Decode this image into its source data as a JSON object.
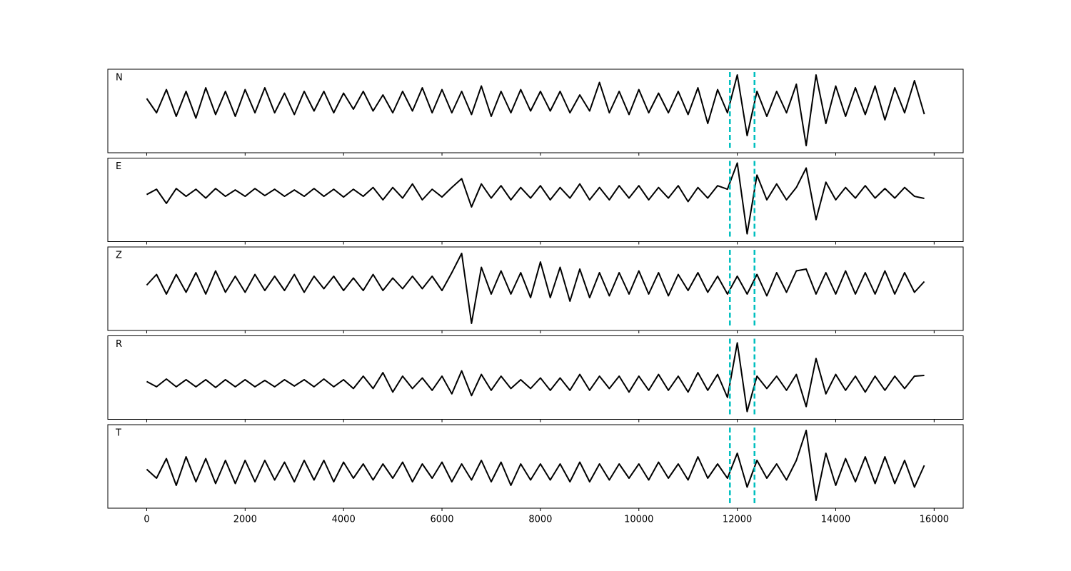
{
  "chart_data": [
    {
      "type": "line",
      "label": "N",
      "x": [
        0,
        200,
        400,
        600,
        800,
        1000,
        1200,
        1400,
        1600,
        1800,
        2000,
        2200,
        2400,
        2600,
        2800,
        3000,
        3200,
        3400,
        3600,
        3800,
        4000,
        4200,
        4400,
        4600,
        4800,
        5000,
        5200,
        5400,
        5600,
        5800,
        6000,
        6200,
        6400,
        6600,
        6800,
        7000,
        7200,
        7400,
        7600,
        7800,
        8000,
        8200,
        8400,
        8600,
        8800,
        9000,
        9200,
        9400,
        9600,
        9800,
        10000,
        10200,
        10400,
        10600,
        10800,
        11000,
        11200,
        11400,
        11600,
        11800,
        12000,
        12200,
        12400,
        12600,
        12800,
        13000,
        13200,
        13400,
        13600,
        13800,
        14000,
        14200,
        14400,
        14600,
        14800,
        15000,
        15200,
        15400,
        15600,
        15800
      ],
      "series": [
        {
          "color": "#000000",
          "values": [
            0.1,
            -0.3,
            0.35,
            -0.4,
            0.3,
            -0.45,
            0.4,
            -0.35,
            0.3,
            -0.4,
            0.35,
            -0.3,
            0.4,
            -0.3,
            0.25,
            -0.35,
            0.3,
            -0.25,
            0.3,
            -0.3,
            0.25,
            -0.2,
            0.3,
            -0.25,
            0.2,
            -0.3,
            0.3,
            -0.25,
            0.4,
            -0.3,
            0.35,
            -0.3,
            0.3,
            -0.35,
            0.45,
            -0.4,
            0.3,
            -0.3,
            0.35,
            -0.25,
            0.3,
            -0.25,
            0.3,
            -0.3,
            0.2,
            -0.25,
            0.55,
            -0.3,
            0.3,
            -0.35,
            0.35,
            -0.3,
            0.25,
            -0.3,
            0.3,
            -0.35,
            0.4,
            -0.6,
            0.35,
            -0.3,
            0.76,
            -0.94,
            0.3,
            -0.4,
            0.3,
            -0.3,
            0.5,
            -1.22,
            0.76,
            -0.6,
            0.45,
            -0.4,
            0.4,
            -0.35,
            0.45,
            -0.5,
            0.4,
            -0.3,
            0.6,
            -0.34
          ]
        }
      ],
      "xlim": [
        -790,
        16590
      ],
      "ylim": [
        -1.42,
        0.92
      ],
      "vlines": [
        11850,
        12350
      ],
      "vline_color": "#00bfbf"
    },
    {
      "type": "line",
      "label": "E",
      "x": [
        0,
        200,
        400,
        600,
        800,
        1000,
        1200,
        1400,
        1600,
        1800,
        2000,
        2200,
        2400,
        2600,
        2800,
        3000,
        3200,
        3400,
        3600,
        3800,
        4000,
        4200,
        4400,
        4600,
        4800,
        5000,
        5200,
        5400,
        5600,
        5800,
        6000,
        6200,
        6400,
        6600,
        6800,
        7000,
        7200,
        7400,
        7600,
        7800,
        8000,
        8200,
        8400,
        8600,
        8800,
        9000,
        9200,
        9400,
        9600,
        9800,
        10000,
        10200,
        10400,
        10600,
        10800,
        11000,
        11200,
        11400,
        11600,
        11800,
        12000,
        12200,
        12400,
        12600,
        12800,
        13000,
        13200,
        13400,
        13600,
        13800,
        14000,
        14200,
        14400,
        14600,
        14800,
        15000,
        15200,
        15400,
        15600,
        15800
      ],
      "series": [
        {
          "color": "#000000",
          "values": [
            -0.05,
            0.1,
            -0.3,
            0.12,
            -0.1,
            0.1,
            -0.15,
            0.12,
            -0.1,
            0.08,
            -0.1,
            0.12,
            -0.08,
            0.1,
            -0.1,
            0.08,
            -0.1,
            0.12,
            -0.1,
            0.1,
            -0.12,
            0.1,
            -0.1,
            0.15,
            -0.2,
            0.15,
            -0.15,
            0.25,
            -0.2,
            0.1,
            -0.12,
            0.15,
            0.4,
            -0.4,
            0.25,
            -0.15,
            0.2,
            -0.2,
            0.15,
            -0.15,
            0.2,
            -0.2,
            0.15,
            -0.15,
            0.25,
            -0.2,
            0.15,
            -0.2,
            0.2,
            -0.15,
            0.2,
            -0.2,
            0.15,
            -0.15,
            0.2,
            -0.25,
            0.15,
            -0.15,
            0.2,
            0.1,
            0.84,
            -1.16,
            0.5,
            -0.2,
            0.25,
            -0.2,
            0.15,
            0.7,
            -0.76,
            0.3,
            -0.2,
            0.15,
            -0.15,
            0.2,
            -0.15,
            0.12,
            -0.15,
            0.15,
            -0.1,
            -0.16
          ]
        }
      ],
      "xlim": [
        -790,
        16590
      ],
      "ylim": [
        -1.38,
        0.98
      ],
      "vlines": [
        11850,
        12350
      ],
      "vline_color": "#00bfbf"
    },
    {
      "type": "line",
      "label": "Z",
      "x": [
        0,
        200,
        400,
        600,
        800,
        1000,
        1200,
        1400,
        1600,
        1800,
        2000,
        2200,
        2400,
        2600,
        2800,
        3000,
        3200,
        3400,
        3600,
        3800,
        4000,
        4200,
        4400,
        4600,
        4800,
        5000,
        5200,
        5400,
        5600,
        5800,
        6000,
        6200,
        6400,
        6600,
        6800,
        7000,
        7200,
        7400,
        7600,
        7800,
        8000,
        8200,
        8400,
        8600,
        8800,
        9000,
        9200,
        9400,
        9600,
        9800,
        10000,
        10200,
        10400,
        10600,
        10800,
        11000,
        11200,
        11400,
        11600,
        11800,
        12000,
        12200,
        12400,
        12600,
        12800,
        13000,
        13200,
        13400,
        13600,
        13800,
        14000,
        14200,
        14400,
        14600,
        14800,
        15000,
        15200,
        15400,
        15600,
        15800
      ],
      "series": [
        {
          "color": "#000000",
          "values": [
            -0.05,
            0.25,
            -0.3,
            0.25,
            -0.25,
            0.3,
            -0.3,
            0.35,
            -0.25,
            0.2,
            -0.25,
            0.25,
            -0.2,
            0.2,
            -0.2,
            0.25,
            -0.25,
            0.2,
            -0.15,
            0.2,
            -0.2,
            0.15,
            -0.2,
            0.25,
            -0.2,
            0.15,
            -0.15,
            0.2,
            -0.15,
            0.2,
            -0.2,
            0.3,
            0.84,
            -1.12,
            0.45,
            -0.3,
            0.35,
            -0.3,
            0.3,
            -0.4,
            0.6,
            -0.4,
            0.45,
            -0.5,
            0.4,
            -0.4,
            0.3,
            -0.35,
            0.3,
            -0.3,
            0.35,
            -0.3,
            0.3,
            -0.35,
            0.25,
            -0.2,
            0.3,
            -0.25,
            0.2,
            -0.3,
            0.2,
            -0.3,
            0.25,
            -0.35,
            0.3,
            -0.25,
            0.35,
            0.4,
            -0.3,
            0.3,
            -0.3,
            0.35,
            -0.3,
            0.3,
            -0.3,
            0.35,
            -0.3,
            0.3,
            -0.25,
            0.05
          ]
        }
      ],
      "xlim": [
        -790,
        16590
      ],
      "ylim": [
        -1.32,
        1.02
      ],
      "vlines": [
        11850,
        12350
      ],
      "vline_color": "#00bfbf"
    },
    {
      "type": "line",
      "label": "R",
      "x": [
        0,
        200,
        400,
        600,
        800,
        1000,
        1200,
        1400,
        1600,
        1800,
        2000,
        2200,
        2400,
        2600,
        2800,
        3000,
        3200,
        3400,
        3600,
        3800,
        4000,
        4200,
        4400,
        4600,
        4800,
        5000,
        5200,
        5400,
        5600,
        5800,
        6000,
        6200,
        6400,
        6600,
        6800,
        7000,
        7200,
        7400,
        7600,
        7800,
        8000,
        8200,
        8400,
        8600,
        8800,
        9000,
        9200,
        9400,
        9600,
        9800,
        10000,
        10200,
        10400,
        10600,
        10800,
        11000,
        11200,
        11400,
        11600,
        11800,
        12000,
        12200,
        12400,
        12600,
        12800,
        13000,
        13200,
        13400,
        13600,
        13800,
        14000,
        14200,
        14400,
        14600,
        14800,
        15000,
        15200,
        15400,
        15600,
        15800
      ],
      "series": [
        {
          "color": "#000000",
          "values": [
            0.05,
            -0.1,
            0.12,
            -0.1,
            0.1,
            -0.1,
            0.1,
            -0.12,
            0.1,
            -0.1,
            0.1,
            -0.1,
            0.08,
            -0.1,
            0.1,
            -0.08,
            0.1,
            -0.1,
            0.12,
            -0.1,
            0.1,
            -0.15,
            0.2,
            -0.15,
            0.3,
            -0.25,
            0.2,
            -0.15,
            0.15,
            -0.2,
            0.2,
            -0.3,
            0.35,
            -0.35,
            0.25,
            -0.2,
            0.2,
            -0.15,
            0.1,
            -0.15,
            0.15,
            -0.2,
            0.15,
            -0.2,
            0.25,
            -0.2,
            0.2,
            -0.15,
            0.2,
            -0.25,
            0.2,
            -0.2,
            0.25,
            -0.2,
            0.2,
            -0.25,
            0.3,
            -0.2,
            0.25,
            -0.4,
            1.14,
            -0.8,
            0.2,
            -0.15,
            0.2,
            -0.2,
            0.25,
            -0.66,
            0.7,
            -0.3,
            0.25,
            -0.2,
            0.2,
            -0.25,
            0.2,
            -0.2,
            0.2,
            -0.15,
            0.2,
            0.22
          ]
        }
      ],
      "xlim": [
        -790,
        16590
      ],
      "ylim": [
        -1.02,
        1.34
      ],
      "vlines": [
        11850,
        12350
      ],
      "vline_color": "#00bfbf"
    },
    {
      "type": "line",
      "label": "T",
      "x": [
        0,
        200,
        400,
        600,
        800,
        1000,
        1200,
        1400,
        1600,
        1800,
        2000,
        2200,
        2400,
        2600,
        2800,
        3000,
        3200,
        3400,
        3600,
        3800,
        4000,
        4200,
        4400,
        4600,
        4800,
        5000,
        5200,
        5400,
        5600,
        5800,
        6000,
        6200,
        6400,
        6600,
        6800,
        7000,
        7200,
        7400,
        7600,
        7800,
        8000,
        8200,
        8400,
        8600,
        8800,
        9000,
        9200,
        9400,
        9600,
        9800,
        10000,
        10200,
        10400,
        10600,
        10800,
        11000,
        11200,
        11400,
        11600,
        11800,
        12000,
        12200,
        12400,
        12600,
        12800,
        13000,
        13200,
        13400,
        13600,
        13800,
        14000,
        14200,
        14400,
        14600,
        14800,
        15000,
        15200,
        15400,
        15600,
        15800
      ],
      "series": [
        {
          "color": "#000000",
          "values": [
            0.05,
            -0.2,
            0.35,
            -0.4,
            0.4,
            -0.3,
            0.35,
            -0.35,
            0.3,
            -0.35,
            0.3,
            -0.3,
            0.3,
            -0.25,
            0.25,
            -0.3,
            0.3,
            -0.25,
            0.3,
            -0.3,
            0.25,
            -0.2,
            0.2,
            -0.25,
            0.2,
            -0.2,
            0.25,
            -0.3,
            0.2,
            -0.2,
            0.25,
            -0.3,
            0.2,
            -0.25,
            0.3,
            -0.3,
            0.25,
            -0.4,
            0.2,
            -0.25,
            0.2,
            -0.25,
            0.2,
            -0.3,
            0.25,
            -0.3,
            0.2,
            -0.25,
            0.2,
            -0.2,
            0.2,
            -0.25,
            0.25,
            -0.2,
            0.2,
            -0.25,
            0.4,
            -0.2,
            0.2,
            -0.2,
            0.5,
            -0.45,
            0.3,
            -0.2,
            0.2,
            -0.25,
            0.3,
            1.14,
            -0.82,
            0.5,
            -0.4,
            0.35,
            -0.3,
            0.4,
            -0.35,
            0.4,
            -0.35,
            0.3,
            -0.45,
            0.16
          ]
        }
      ],
      "xlim": [
        -790,
        16590
      ],
      "ylim": [
        -1.04,
        1.3
      ],
      "vlines": [
        11850,
        12350
      ],
      "vline_color": "#00bfbf",
      "xticks": [
        0,
        2000,
        4000,
        6000,
        8000,
        10000,
        12000,
        14000,
        16000
      ]
    }
  ]
}
